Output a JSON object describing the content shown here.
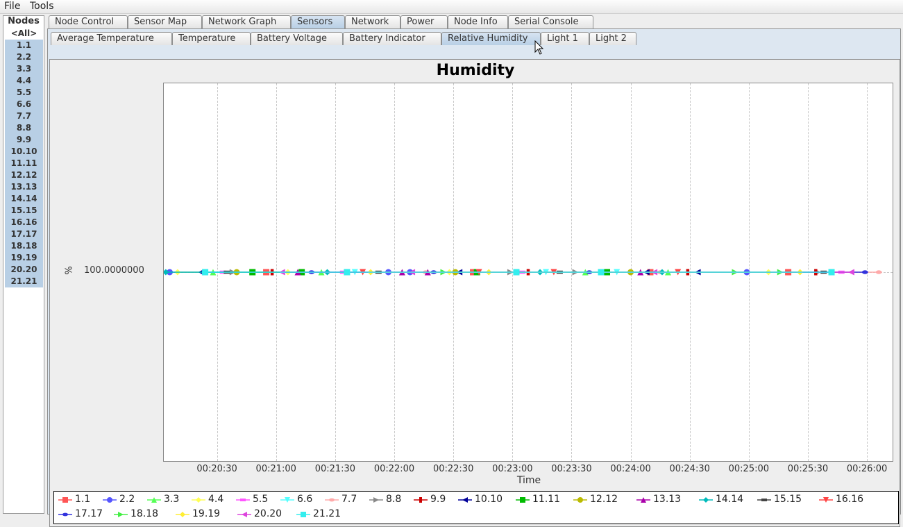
{
  "menu": {
    "file": "File",
    "tools": "Tools"
  },
  "nodes": {
    "title": "Nodes",
    "items": [
      "<All>",
      "1.1",
      "2.2",
      "3.3",
      "4.4",
      "5.5",
      "6.6",
      "7.7",
      "8.8",
      "9.9",
      "10.10",
      "11.11",
      "12.12",
      "13.13",
      "14.14",
      "15.15",
      "16.16",
      "17.17",
      "18.18",
      "19.19",
      "20.20",
      "21.21"
    ]
  },
  "main_tabs": [
    "Node Control",
    "Sensor Map",
    "Network Graph",
    "Sensors",
    "Network",
    "Power",
    "Node Info",
    "Serial Console"
  ],
  "main_tab_active": "Sensors",
  "sensor_tabs": [
    "Average Temperature",
    "Temperature",
    "Battery Voltage",
    "Battery Indicator",
    "Relative Humidity",
    "Light 1",
    "Light 2"
  ],
  "sensor_tab_active": "Relative Humidity",
  "chart_data": {
    "type": "line",
    "title": "Humidity",
    "xlabel": "Time",
    "ylabel": "%",
    "x_ticks": [
      "00:20:30",
      "00:21:00",
      "00:21:30",
      "00:22:00",
      "00:22:30",
      "00:23:00",
      "00:23:30",
      "00:24:00",
      "00:24:30",
      "00:25:00",
      "00:25:30",
      "00:26:00"
    ],
    "y_ticks": [
      "100.0000000"
    ],
    "xlim": [
      "00:20:03",
      "00:26:13"
    ],
    "ylim": [
      99.99999,
      100.00001
    ],
    "grid": true,
    "legend_placement": "bottom",
    "series": [
      {
        "name": "1.1",
        "color": "#ff5555",
        "marker": "square",
        "x": [
          "00:20:55",
          "00:22:40",
          "00:24:10",
          "00:25:20"
        ],
        "y": [
          100,
          100,
          100,
          100
        ]
      },
      {
        "name": "2.2",
        "color": "#5555ff",
        "marker": "circle",
        "x": [
          "00:20:06",
          "00:21:57",
          "00:22:08",
          "00:24:59"
        ],
        "y": [
          100,
          100,
          100,
          100
        ]
      },
      {
        "name": "3.3",
        "color": "#55ff55",
        "marker": "triangle-up",
        "x": [
          "00:20:28",
          "00:21:23",
          "00:23:37",
          "00:24:19"
        ],
        "y": [
          100,
          100,
          100,
          100
        ]
      },
      {
        "name": "4.4",
        "color": "#ffff55",
        "marker": "diamond",
        "x": [
          "00:20:10",
          "00:21:06",
          "00:22:28",
          "00:25:10"
        ],
        "y": [
          100,
          100,
          100,
          100
        ]
      },
      {
        "name": "5.5",
        "color": "#ff55ff",
        "marker": "rect",
        "x": [
          "00:20:33",
          "00:21:34",
          "00:23:05",
          "00:25:47"
        ],
        "y": [
          100,
          100,
          100,
          100
        ]
      },
      {
        "name": "6.6",
        "color": "#55ffff",
        "marker": "triangle-down",
        "x": [
          "00:20:24",
          "00:21:40",
          "00:23:17",
          "00:23:53"
        ],
        "y": [
          100,
          100,
          100,
          100
        ]
      },
      {
        "name": "7.7",
        "color": "#ffaaaa",
        "marker": "ellipse",
        "x": [
          "00:21:26",
          "00:22:16",
          "00:24:15",
          "00:26:06"
        ],
        "y": [
          100,
          100,
          100,
          100
        ]
      },
      {
        "name": "8.8",
        "color": "#888888",
        "marker": "triangle-right",
        "x": [
          "00:20:38",
          "00:22:59",
          "00:23:32",
          "00:25:35"
        ],
        "y": [
          100,
          100,
          100,
          100
        ]
      },
      {
        "name": "9.9",
        "color": "#cc0000",
        "marker": "rect-v",
        "x": [
          "00:20:58",
          "00:23:08",
          "00:24:29",
          "00:25:34"
        ],
        "y": [
          100,
          100,
          100,
          100
        ]
      },
      {
        "name": "10.10",
        "color": "#000099",
        "marker": "triangle-left",
        "x": [
          "00:20:22",
          "00:22:33",
          "00:24:08",
          "00:24:34"
        ],
        "y": [
          100,
          100,
          100,
          100
        ]
      },
      {
        "name": "11.11",
        "color": "#00bb00",
        "marker": "square",
        "x": [
          "00:20:48",
          "00:21:13",
          "00:22:42",
          "00:23:48"
        ],
        "y": [
          100,
          100,
          100,
          100
        ]
      },
      {
        "name": "12.12",
        "color": "#bbbb00",
        "marker": "circle",
        "x": [
          "00:20:40",
          "00:22:31",
          "00:24:00"
        ],
        "y": [
          100,
          100,
          100
        ]
      },
      {
        "name": "13.13",
        "color": "#aa00aa",
        "marker": "triangle-up",
        "x": [
          "00:21:11",
          "00:22:04",
          "00:22:17",
          "00:24:05"
        ],
        "y": [
          100,
          100,
          100,
          100
        ]
      },
      {
        "name": "14.14",
        "color": "#00bbbb",
        "marker": "diamond",
        "x": [
          "00:20:04",
          "00:21:26",
          "00:23:14",
          "00:24:16"
        ],
        "y": [
          100,
          100,
          100,
          100
        ]
      },
      {
        "name": "15.15",
        "color": "#444444",
        "marker": "rect",
        "x": [
          "00:20:35",
          "00:21:52",
          "00:23:24",
          "00:25:38"
        ],
        "y": [
          100,
          100,
          100,
          100
        ]
      },
      {
        "name": "16.16",
        "color": "#ff4444",
        "marker": "triangle-down",
        "x": [
          "00:21:44",
          "00:22:43",
          "00:23:21",
          "00:24:24"
        ],
        "y": [
          100,
          100,
          100,
          100
        ]
      },
      {
        "name": "17.17",
        "color": "#3333dd",
        "marker": "ellipse",
        "x": [
          "00:21:18",
          "00:22:20",
          "00:23:39",
          "00:25:59"
        ],
        "y": [
          100,
          100,
          100,
          100
        ]
      },
      {
        "name": "18.18",
        "color": "#44ee44",
        "marker": "triangle-right",
        "x": [
          "00:22:25",
          "00:24:53",
          "00:25:16"
        ],
        "y": [
          100,
          100,
          100
        ]
      },
      {
        "name": "19.19",
        "color": "#ffee33",
        "marker": "diamond",
        "x": [
          "00:21:48",
          "00:22:48",
          "00:25:26"
        ],
        "y": [
          100,
          100,
          100
        ]
      },
      {
        "name": "20.20",
        "color": "#dd44dd",
        "marker": "triangle-left",
        "x": [
          "00:21:03",
          "00:22:09",
          "00:24:12",
          "00:25:52"
        ],
        "y": [
          100,
          100,
          100,
          100
        ]
      },
      {
        "name": "21.21",
        "color": "#33eeee",
        "marker": "square",
        "x": [
          "00:20:24",
          "00:21:36",
          "00:23:02",
          "00:23:45",
          "00:25:42"
        ],
        "y": [
          100,
          100,
          100,
          100,
          100
        ]
      }
    ]
  }
}
